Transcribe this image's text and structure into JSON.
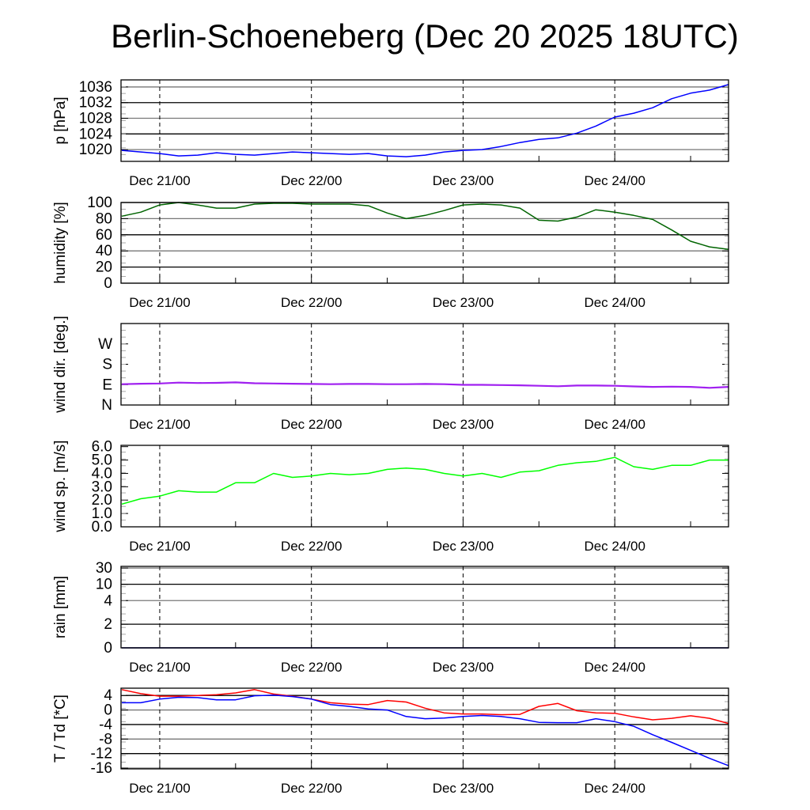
{
  "chart_data": {
    "type": "line",
    "title": "Berlin-Schoeneberg (Dec 20 2025 18UTC)",
    "x_unit": "hours since Dec 20 18UTC",
    "x_range": [
      0,
      96
    ],
    "x_step_hours": 3,
    "x_ticks": [
      {
        "hour": 6,
        "label": "Dec 21/00"
      },
      {
        "hour": 30,
        "label": "Dec 22/00"
      },
      {
        "hour": 54,
        "label": "Dec 23/00"
      },
      {
        "hour": 78,
        "label": "Dec 24/00"
      }
    ],
    "panels": [
      {
        "name": "pressure",
        "ylabel": "p [hPa]",
        "ylim": [
          1017,
          1037.8
        ],
        "grid": true,
        "yticks": [
          {
            "value": 1020,
            "label": "1020"
          },
          {
            "value": 1024,
            "label": "1024"
          },
          {
            "value": 1028,
            "label": "1028"
          },
          {
            "value": 1032,
            "label": "1032"
          },
          {
            "value": 1036,
            "label": "1036"
          }
        ],
        "series": [
          {
            "name": "pressure",
            "color": "#0000ff",
            "values": [
              1019.8,
              1019.4,
              1019.0,
              1018.4,
              1018.6,
              1019.2,
              1018.8,
              1018.6,
              1019.0,
              1019.4,
              1019.2,
              1019.0,
              1018.8,
              1019.0,
              1018.4,
              1018.2,
              1018.6,
              1019.4,
              1019.8,
              1020.0,
              1020.8,
              1021.8,
              1022.6,
              1023.0,
              1024.2,
              1026.0,
              1028.3,
              1029.3,
              1030.7,
              1033.0,
              1034.4,
              1035.2,
              1036.6
            ]
          }
        ]
      },
      {
        "name": "humidity",
        "ylabel": "humidity [%]",
        "ylim": [
          0,
          100
        ],
        "grid": true,
        "yticks": [
          {
            "value": 0,
            "label": "0"
          },
          {
            "value": 20,
            "label": "20"
          },
          {
            "value": 40,
            "label": "40"
          },
          {
            "value": 60,
            "label": "60"
          },
          {
            "value": 80,
            "label": "80"
          },
          {
            "value": 100,
            "label": "100"
          }
        ],
        "series": [
          {
            "name": "humidity",
            "color": "#006400",
            "values": [
              83,
              88,
              97,
              100,
              97,
              93,
              93,
              98,
              99,
              99,
              98,
              98,
              98,
              96,
              87,
              80,
              84,
              90,
              97,
              98,
              97,
              93,
              78,
              77,
              82,
              91,
              88,
              84,
              79,
              66,
              52,
              45,
              42
            ]
          }
        ]
      },
      {
        "name": "wind-direction",
        "ylabel": "wind dir. [deg.]",
        "ylim": [
          0,
          360
        ],
        "grid": false,
        "yticks": [
          {
            "value": 0,
            "label": "N"
          },
          {
            "value": 90,
            "label": "E"
          },
          {
            "value": 180,
            "label": "S"
          },
          {
            "value": 270,
            "label": "W"
          }
        ],
        "series": [
          {
            "name": "wind direction",
            "color": "#a020f0",
            "values": [
              92,
              94,
              95,
              99,
              97,
              98,
              100,
              96,
              95,
              94,
              93,
              92,
              93,
              93,
              92,
              92,
              93,
              92,
              89,
              89,
              88,
              87,
              85,
              83,
              86,
              86,
              85,
              82,
              80,
              81,
              80,
              76,
              80
            ]
          }
        ]
      },
      {
        "name": "wind-speed",
        "ylabel": "wind sp. [m/s]",
        "ylim": [
          0,
          6.1
        ],
        "grid": false,
        "yticks": [
          {
            "value": 0,
            "label": "0.0"
          },
          {
            "value": 1,
            "label": "1.0"
          },
          {
            "value": 2,
            "label": "2.0"
          },
          {
            "value": 3,
            "label": "3.0"
          },
          {
            "value": 4,
            "label": "4.0"
          },
          {
            "value": 5,
            "label": "5.0"
          },
          {
            "value": 6,
            "label": "6.0"
          }
        ],
        "series": [
          {
            "name": "wind speed",
            "color": "#00ff00",
            "values": [
              1.7,
              2.1,
              2.3,
              2.7,
              2.6,
              2.6,
              3.3,
              3.3,
              4.0,
              3.7,
              3.8,
              4.0,
              3.9,
              4.0,
              4.3,
              4.4,
              4.3,
              4.0,
              3.8,
              4.0,
              3.7,
              4.1,
              4.2,
              4.6,
              4.8,
              4.9,
              5.2,
              4.5,
              4.3,
              4.6,
              4.6,
              5.0,
              5.0
            ]
          }
        ]
      },
      {
        "name": "rain",
        "ylabel": "rain [mm]",
        "ylim": [
          0,
          30
        ],
        "grid": true,
        "scale": "nonlinear",
        "yticks": [
          {
            "value": 0,
            "label": "0"
          },
          {
            "value": 2,
            "label": "2"
          },
          {
            "value": 4,
            "label": "4"
          },
          {
            "value": 10,
            "label": "10"
          },
          {
            "value": 30,
            "label": "30"
          }
        ],
        "series": [
          {
            "name": "rain",
            "color": "#000080",
            "values": [
              0,
              0,
              0,
              0,
              0,
              0,
              0,
              0,
              0,
              0,
              0,
              0,
              0,
              0,
              0,
              0,
              0,
              0,
              0,
              0,
              0,
              0,
              0,
              0,
              0,
              0,
              0,
              0,
              0,
              0,
              0,
              0,
              0
            ]
          }
        ]
      },
      {
        "name": "temperature",
        "ylabel": "T / Td [*C]",
        "ylim": [
          -16.2,
          6
        ],
        "grid": true,
        "yticks": [
          {
            "value": -16,
            "label": "-16"
          },
          {
            "value": -12,
            "label": "-12"
          },
          {
            "value": -8,
            "label": "-8"
          },
          {
            "value": -4,
            "label": "-4"
          },
          {
            "value": 0,
            "label": "0"
          },
          {
            "value": 4,
            "label": "4"
          }
        ],
        "series": [
          {
            "name": "T",
            "color": "#ff0000",
            "values": [
              5.6,
              4.5,
              3.8,
              3.8,
              4.0,
              4.2,
              4.7,
              5.6,
              4.4,
              3.8,
              3.0,
              2.0,
              1.6,
              1.5,
              2.6,
              2.2,
              0.5,
              -0.8,
              -1.1,
              -1.1,
              -1.3,
              -1.2,
              1.0,
              1.8,
              -0.2,
              -0.8,
              -0.9,
              -1.9,
              -2.7,
              -2.3,
              -1.6,
              -2.3,
              -3.7
            ]
          },
          {
            "name": "Td",
            "color": "#0000ff",
            "values": [
              2.0,
              2.0,
              3.0,
              3.5,
              3.4,
              2.8,
              2.8,
              3.9,
              4.1,
              3.7,
              3.0,
              1.5,
              1.0,
              0.3,
              0.0,
              -1.8,
              -2.4,
              -2.2,
              -1.8,
              -1.5,
              -1.8,
              -2.4,
              -3.4,
              -3.5,
              -3.5,
              -2.4,
              -3.2,
              -4.5,
              -6.8,
              -8.9,
              -11.1,
              -13.3,
              -15.3
            ]
          }
        ]
      }
    ]
  }
}
